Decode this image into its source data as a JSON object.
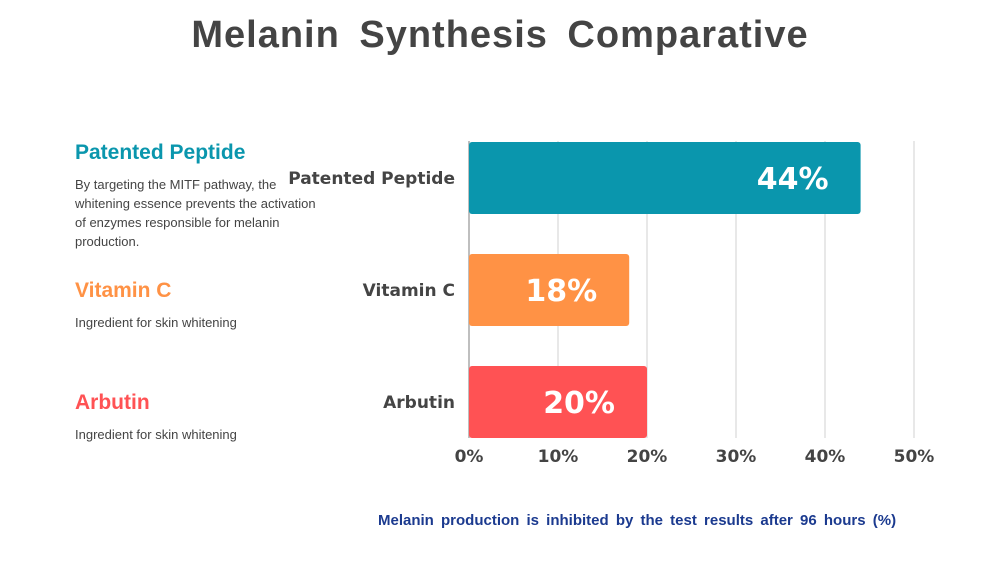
{
  "title": "Melanin Synthesis Comparative",
  "colors": {
    "title": "#444444",
    "peptide": "#0a96ad",
    "vitaminc": "#ff9245",
    "arbutin": "#ff5254",
    "gridline": "#d9d9d9",
    "axis": "#bfbfbf",
    "footnote": "#1b3a8f"
  },
  "legend": [
    {
      "heading": "Patented Peptide",
      "color": "#0a96ad",
      "lines": [
        "By targeting the MITF pathway, the",
        "whitening essence prevents the activation",
        "of enzymes responsible for melanin",
        "production."
      ]
    },
    {
      "heading": "Vitamin C",
      "color": "#ff9245",
      "lines": [
        "Ingredient for skin whitening"
      ]
    },
    {
      "heading": "Arbutin",
      "color": "#ff5254",
      "lines": [
        "Ingredient for skin whitening"
      ]
    }
  ],
  "chart_data": {
    "type": "bar",
    "orientation": "horizontal",
    "title": "Melanin Synthesis Comparative",
    "categories": [
      "Patented Peptide",
      "Vitamin C",
      "Arbutin"
    ],
    "values": [
      44,
      18,
      20
    ],
    "value_labels": [
      "44%",
      "18%",
      "20%"
    ],
    "colors": [
      "#0a96ad",
      "#ff9245",
      "#ff5254"
    ],
    "xlim": [
      0,
      50
    ],
    "xticks": [
      0,
      10,
      20,
      30,
      40,
      50
    ],
    "xtick_labels": [
      "0%",
      "10%",
      "20%",
      "30%",
      "40%",
      "50%"
    ],
    "xlabel": "",
    "ylabel": "",
    "grid": true
  },
  "footnote": "Melanin production is inhibited by the test results after 96 hours (%)"
}
